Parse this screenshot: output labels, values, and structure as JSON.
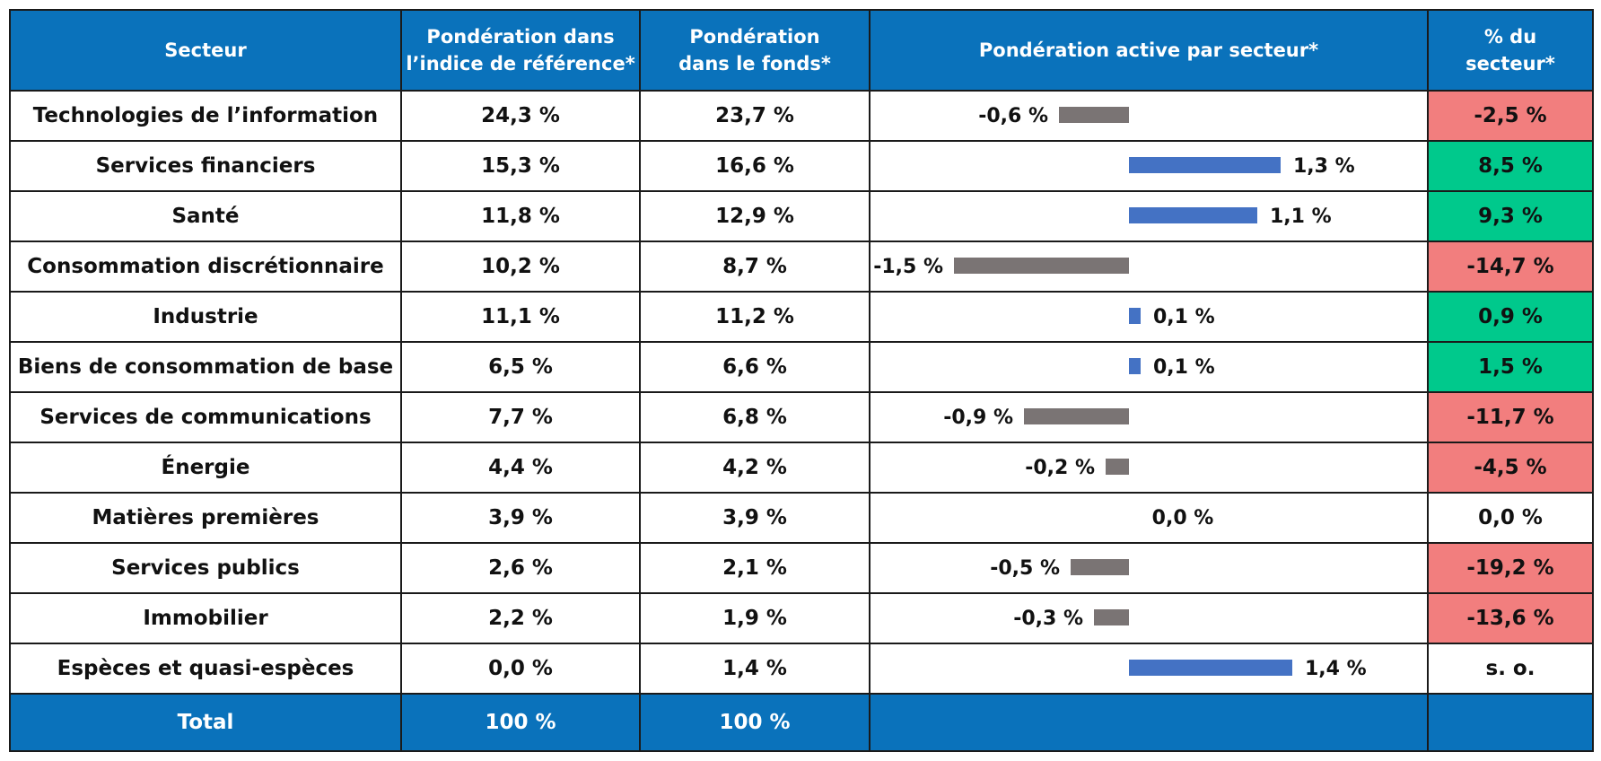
{
  "header": {
    "sector": "Secteur",
    "benchmark_line1": "Pondération dans",
    "benchmark_line2": "l’indice de référence*",
    "fund_line1": "Pondération",
    "fund_line2": "dans le fonds*",
    "active": "Pondération active par secteur*",
    "pct_line1": "% du",
    "pct_line2": "secteur*"
  },
  "colors": {
    "header_bg": "#0a72bb",
    "positive_bar": "#4472c4",
    "negative_bar": "#7a7474",
    "positive_cell": "#00c98c",
    "negative_cell": "#f27e7e"
  },
  "rows": [
    {
      "sector": "Technologies de l’information",
      "benchmark": "24,3 %",
      "fund": "23,7 %",
      "active_label": "-0,6 %",
      "pct": "-2,5 %",
      "pct_sign": "neg"
    },
    {
      "sector": "Services financiers",
      "benchmark": "15,3 %",
      "fund": "16,6 %",
      "active_label": "1,3 %",
      "pct": "8,5 %",
      "pct_sign": "pos"
    },
    {
      "sector": "Santé",
      "benchmark": "11,8 %",
      "fund": "12,9 %",
      "active_label": "1,1 %",
      "pct": "9,3 %",
      "pct_sign": "pos"
    },
    {
      "sector": "Consommation discrétionnaire",
      "benchmark": "10,2 %",
      "fund": "8,7 %",
      "active_label": "-1,5 %",
      "pct": "-14,7 %",
      "pct_sign": "neg"
    },
    {
      "sector": "Industrie",
      "benchmark": "11,1 %",
      "fund": "11,2 %",
      "active_label": "0,1 %",
      "pct": "0,9 %",
      "pct_sign": "pos"
    },
    {
      "sector": "Biens de consommation de base",
      "benchmark": "6,5 %",
      "fund": "6,6 %",
      "active_label": "0,1 %",
      "pct": "1,5 %",
      "pct_sign": "pos"
    },
    {
      "sector": "Services de communications",
      "benchmark": "7,7 %",
      "fund": "6,8 %",
      "active_label": "-0,9 %",
      "pct": "-11,7 %",
      "pct_sign": "neg"
    },
    {
      "sector": "Énergie",
      "benchmark": "4,4 %",
      "fund": "4,2 %",
      "active_label": "-0,2 %",
      "pct": "-4,5 %",
      "pct_sign": "neg"
    },
    {
      "sector": "Matières premières",
      "benchmark": "3,9 %",
      "fund": "3,9 %",
      "active_label": "0,0 %",
      "pct": "0,0 %",
      "pct_sign": "zero"
    },
    {
      "sector": "Services publics",
      "benchmark": "2,6 %",
      "fund": "2,1 %",
      "active_label": "-0,5 %",
      "pct": "-19,2 %",
      "pct_sign": "neg"
    },
    {
      "sector": "Immobilier",
      "benchmark": "2,2 %",
      "fund": "1,9 %",
      "active_label": "-0,3 %",
      "pct": "-13,6 %",
      "pct_sign": "neg"
    },
    {
      "sector": "Espèces et quasi-espèces",
      "benchmark": "0,0 %",
      "fund": "1,4 %",
      "active_label": "1,4 %",
      "pct": "s. o.",
      "pct_sign": "zero"
    }
  ],
  "total": {
    "label": "Total",
    "benchmark": "100 %",
    "fund": "100 %"
  },
  "chart_data": {
    "type": "bar",
    "orientation": "horizontal",
    "categories": [
      "Technologies de l’information",
      "Services financiers",
      "Santé",
      "Consommation discrétionnaire",
      "Industrie",
      "Biens de consommation de base",
      "Services de communications",
      "Énergie",
      "Matières premières",
      "Services publics",
      "Immobilier",
      "Espèces et quasi-espèces"
    ],
    "values": [
      -0.6,
      1.3,
      1.1,
      -1.5,
      0.1,
      0.1,
      -0.9,
      -0.2,
      0.0,
      -0.5,
      -0.3,
      1.4
    ],
    "xlim": [
      -1.5,
      1.4
    ],
    "title": "Pondération active par secteur*",
    "grid": false
  }
}
